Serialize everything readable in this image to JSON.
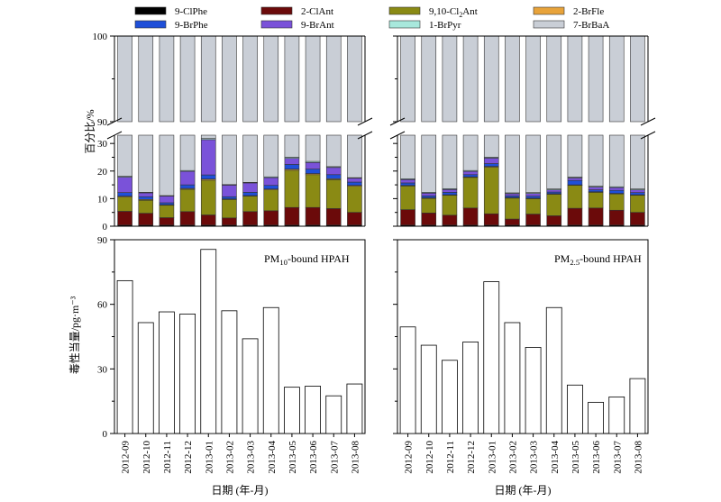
{
  "chart_data": [
    {
      "type": "bar",
      "stacked": true,
      "panel": "composition-PM10",
      "categories": [
        "2012-09",
        "2012-10",
        "2012-11",
        "2012-12",
        "2013-01",
        "2013-02",
        "2013-03",
        "2013-04",
        "2013-05",
        "2013-06",
        "2013-07",
        "2013-08"
      ],
      "ylabel": "百分比/%",
      "ylim": [
        0,
        100
      ],
      "axis_break": [
        33,
        90
      ],
      "yticks": [
        0,
        10,
        20,
        30,
        90,
        100
      ],
      "legend_placement": "top",
      "series": [
        {
          "name": "9-ClPhe",
          "color": "#000000",
          "values": [
            0.4,
            0.4,
            0.4,
            0.4,
            0.4,
            0.4,
            0.4,
            0.4,
            0.4,
            0.4,
            0.4,
            0.4
          ]
        },
        {
          "name": "2-ClAnt",
          "color": "#6b0a0a",
          "values": [
            5.0,
            4.3,
            2.7,
            4.9,
            3.7,
            2.6,
            4.9,
            5.2,
            6.4,
            6.4,
            6.0,
            4.6
          ]
        },
        {
          "name": "9,10-Cl2Ant",
          "color": "#8a8a14",
          "values": [
            5.2,
            4.7,
            4.5,
            8.1,
            12.6,
            6.7,
            5.6,
            7.6,
            13.5,
            11.9,
            10.5,
            9.5
          ]
        },
        {
          "name": "2-BrFle",
          "color": "#e8a33a",
          "values": [
            0.3,
            0.3,
            0.2,
            0.3,
            0.4,
            0.2,
            0.2,
            0.3,
            0.4,
            0.4,
            0.3,
            0.3
          ]
        },
        {
          "name": "9-BrPhe",
          "color": "#1f4fd8",
          "values": [
            1.3,
            1.0,
            0.7,
            1.3,
            1.5,
            0.8,
            1.2,
            1.3,
            1.7,
            1.6,
            1.5,
            1.2
          ]
        },
        {
          "name": "9-BrAnt",
          "color": "#7a52d9",
          "values": [
            5.6,
            1.4,
            2.4,
            4.9,
            12.8,
            4.2,
            3.4,
            2.8,
            2.2,
            2.4,
            2.6,
            1.4
          ]
        },
        {
          "name": "1-BrPyr",
          "color": "#a8e8dc",
          "values": [
            0.3,
            0.2,
            0.2,
            0.3,
            0.4,
            0.2,
            0.2,
            0.3,
            0.4,
            0.4,
            0.3,
            0.2
          ]
        },
        {
          "name": "7-BrBaA",
          "color": "#c9ced6",
          "values": [
            81.9,
            87.7,
            88.9,
            79.8,
            68.2,
            84.9,
            84.1,
            82.1,
            75.0,
            76.5,
            78.4,
            82.4
          ]
        }
      ]
    },
    {
      "type": "bar",
      "stacked": true,
      "panel": "composition-PM2.5",
      "categories": [
        "2012-09",
        "2012-10",
        "2012-11",
        "2012-12",
        "2013-01",
        "2013-02",
        "2013-03",
        "2013-04",
        "2013-05",
        "2013-06",
        "2013-07",
        "2013-08"
      ],
      "ylim": [
        0,
        100
      ],
      "axis_break": [
        33,
        90
      ],
      "series": [
        {
          "name": "9-ClPhe",
          "color": "#000000",
          "values": [
            0.4,
            0.4,
            0.4,
            0.4,
            0.4,
            0.4,
            0.4,
            0.4,
            0.4,
            0.4,
            0.4,
            0.4
          ]
        },
        {
          "name": "2-ClAnt",
          "color": "#6b0a0a",
          "values": [
            5.6,
            4.4,
            3.6,
            6.2,
            4.1,
            2.2,
            4.0,
            3.4,
            6.1,
            6.2,
            5.4,
            4.6
          ]
        },
        {
          "name": "9,10-Cl2Ant",
          "color": "#8a8a14",
          "values": [
            8.6,
            5.3,
            7.2,
            11.1,
            16.9,
            7.6,
            5.6,
            7.8,
            8.3,
            5.7,
            5.9,
            6.2
          ]
        },
        {
          "name": "2-BrFle",
          "color": "#e8a33a",
          "values": [
            0.2,
            0.2,
            0.2,
            0.2,
            0.3,
            0.2,
            0.2,
            0.2,
            0.2,
            0.2,
            0.2,
            0.2
          ]
        },
        {
          "name": "9-BrPhe",
          "color": "#1f4fd8",
          "values": [
            0.9,
            0.7,
            0.9,
            0.8,
            1.0,
            0.6,
            0.7,
            0.6,
            1.6,
            0.7,
            1.1,
            0.8
          ]
        },
        {
          "name": "9-BrAnt",
          "color": "#7a52d9",
          "values": [
            1.2,
            1.0,
            1.0,
            1.2,
            2.0,
            0.8,
            1.0,
            0.8,
            0.9,
            1.0,
            1.0,
            1.0
          ]
        },
        {
          "name": "1-BrPyr",
          "color": "#a8e8dc",
          "values": [
            0.3,
            0.3,
            0.3,
            0.3,
            0.3,
            0.3,
            0.3,
            0.3,
            0.3,
            0.3,
            0.3,
            0.3
          ]
        },
        {
          "name": "7-BrBaA",
          "color": "#c9ced6",
          "values": [
            82.8,
            87.7,
            86.4,
            79.8,
            75.0,
            87.9,
            87.8,
            86.5,
            82.2,
            85.5,
            85.7,
            86.5
          ]
        }
      ]
    },
    {
      "type": "bar",
      "panel": "TEQ-PM10",
      "annotation_main": "PM",
      "annotation_sub": "10",
      "annotation_tail": "-bound HPAH",
      "categories": [
        "2012-09",
        "2012-10",
        "2012-11",
        "2012-12",
        "2013-01",
        "2013-02",
        "2013-03",
        "2013-04",
        "2013-05",
        "2013-06",
        "2013-07",
        "2013-08"
      ],
      "values": [
        71,
        51.5,
        56.5,
        55.5,
        85.5,
        57,
        44,
        58.5,
        21.5,
        22,
        17.5,
        23
      ],
      "ylabel": "毒性当量/pg·m⁻³",
      "xlabel": "日期 (年-月)",
      "ylim": [
        0,
        90
      ],
      "yticks": [
        0,
        30,
        60,
        90
      ]
    },
    {
      "type": "bar",
      "panel": "TEQ-PM2.5",
      "annotation_main": "PM",
      "annotation_sub": "2.5",
      "annotation_tail": "-bound HPAH",
      "categories": [
        "2012-09",
        "2012-10",
        "2012-11",
        "2012-12",
        "2013-01",
        "2013-02",
        "2013-03",
        "2013-04",
        "2013-05",
        "2013-06",
        "2013-07",
        "2013-08"
      ],
      "values": [
        49.5,
        41,
        34,
        42.5,
        70.5,
        51.5,
        40,
        58.5,
        22.5,
        14.5,
        17,
        25.5
      ],
      "xlabel": "日期 (年-月)",
      "ylim": [
        0,
        90
      ]
    }
  ],
  "legend": [
    {
      "label": "9-ClPhe",
      "color": "#000000"
    },
    {
      "label": "2-ClAnt",
      "color": "#6b0a0a"
    },
    {
      "label_main": "9,10-Cl",
      "label_sub": "2",
      "label_tail": "Ant",
      "color": "#8a8a14"
    },
    {
      "label": "2-BrFle",
      "color": "#e8a33a"
    },
    {
      "label": "9-BrPhe",
      "color": "#1f4fd8"
    },
    {
      "label": "9-BrAnt",
      "color": "#7a52d9"
    },
    {
      "label": "1-BrPyr",
      "color": "#a8e8dc"
    },
    {
      "label": "7-BrBaA",
      "color": "#c9ced6"
    }
  ],
  "labels": {
    "ylabel_top": "百分比/%",
    "ylabel_bottom": "毒性当量/pg·m⁻³",
    "xlabel": "日期 (年-月)",
    "yticks_top_high": [
      "90",
      "100"
    ],
    "yticks_top_low": [
      "0",
      "10",
      "20",
      "30"
    ],
    "yticks_bottom": [
      "0",
      "30",
      "60",
      "90"
    ]
  }
}
